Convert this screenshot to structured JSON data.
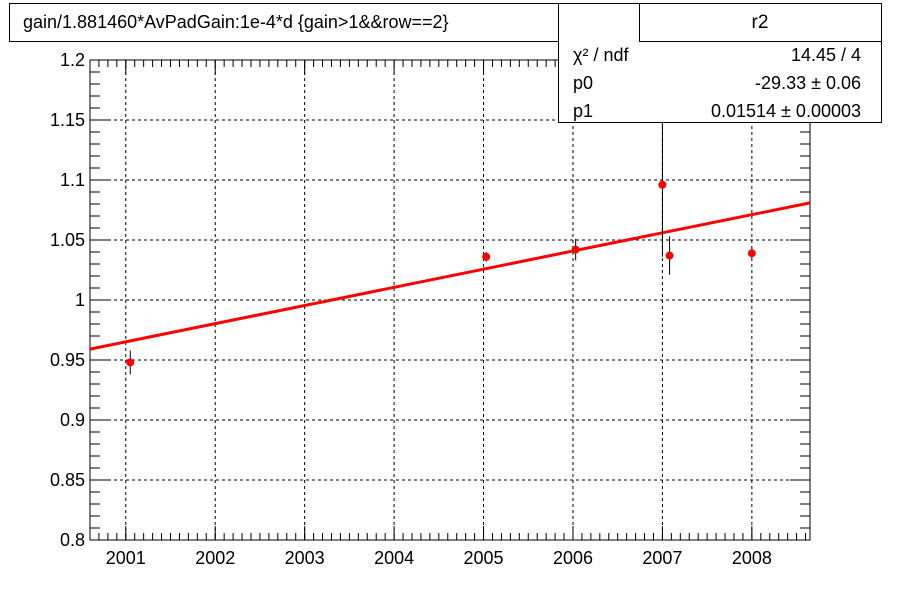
{
  "chart_data": {
    "type": "scatter",
    "title": "gain/1.881460*AvPadGain:1e-4*d  {gain>1&&row==2}",
    "xlim": [
      2000.6,
      2008.65
    ],
    "ylim": [
      0.8,
      1.2
    ],
    "x_ticks": [
      "2001",
      "2002",
      "2003",
      "2004",
      "2005",
      "2006",
      "2007",
      "2008"
    ],
    "x_tick_values": [
      2001,
      2002,
      2003,
      2004,
      2005,
      2006,
      2007,
      2008
    ],
    "y_ticks": [
      "0.8",
      "0.85",
      "0.9",
      "0.95",
      "1",
      "1.05",
      "1.1",
      "1.15",
      "1.2"
    ],
    "y_tick_values": [
      0.8,
      0.85,
      0.9,
      0.95,
      1.0,
      1.05,
      1.1,
      1.15,
      1.2
    ],
    "grid": true,
    "points": [
      {
        "x": 2001.05,
        "y": 0.948,
        "err": 0.01
      },
      {
        "x": 2005.03,
        "y": 1.036,
        "err": 0.004
      },
      {
        "x": 2006.03,
        "y": 1.042,
        "err": 0.009
      },
      {
        "x": 2007.0,
        "y": 1.096,
        "err": 0.06
      },
      {
        "x": 2007.08,
        "y": 1.037,
        "err": 0.016
      },
      {
        "x": 2008.0,
        "y": 1.039,
        "err": 0.004
      }
    ],
    "fit": {
      "p0": -29.33,
      "p1": 0.01514,
      "x_range": [
        2000.6,
        2008.65
      ]
    },
    "marker_color": "#ff0000",
    "fit_color": "#ff0000"
  },
  "stats": {
    "name": "r2",
    "rows": [
      {
        "key": "χ² / ndf",
        "value": "14.45 / 4"
      },
      {
        "key": "p0",
        "value": "-29.33 ± 0.06"
      },
      {
        "key": "p1",
        "value": "0.01514  ± 0.00003"
      }
    ]
  }
}
